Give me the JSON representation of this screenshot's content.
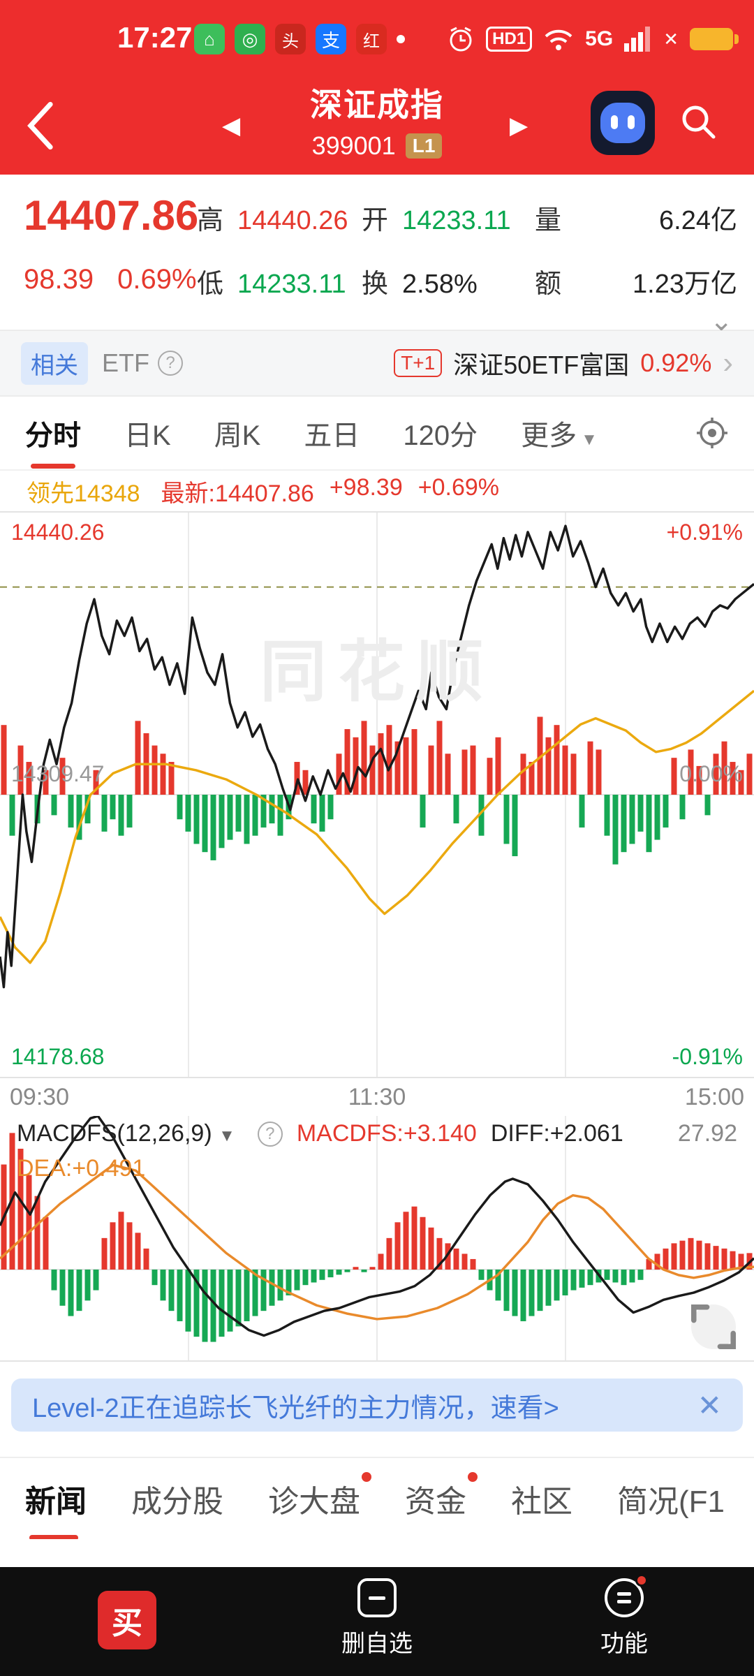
{
  "status_bar": {
    "time": "17:27",
    "hd": "HD1",
    "net": "5G"
  },
  "icons": {
    "prev": "◀",
    "next": "▶",
    "dropdown": "▼",
    "chevron_right": "›",
    "chevron_down": "⌄",
    "close": "✕",
    "help": "?",
    "no_sim": "✕",
    "home_badge": "⌂",
    "target_badge": "◎",
    "toutiao_badge": "头",
    "alipay_badge": "支",
    "news_badge": "红"
  },
  "header": {
    "title": "深证成指",
    "code": "399001",
    "level_badge": "L1"
  },
  "quote": {
    "price": "14407.86",
    "change": "98.39",
    "change_pct": "0.69%",
    "high_label": "高",
    "high": "14440.26",
    "open_label": "开",
    "open": "14233.11",
    "volume_label": "量",
    "volume": "6.24亿",
    "low_label": "低",
    "low": "14233.11",
    "turnover_label": "换",
    "turnover": "2.58%",
    "amount_label": "额",
    "amount": "1.23万亿"
  },
  "related": {
    "tag": "相关",
    "etf_label": "ETF",
    "t1_badge": "T+1",
    "name": "深证50ETF富国",
    "change_pct": "0.92%"
  },
  "period_tabs": {
    "items": [
      {
        "label": "分时"
      },
      {
        "label": "日K"
      },
      {
        "label": "周K"
      },
      {
        "label": "五日"
      },
      {
        "label": "120分"
      },
      {
        "label": "更多"
      }
    ]
  },
  "chart_header": {
    "lead_label": "领先",
    "lead_value": "14348",
    "latest_label": "最新:",
    "latest_value": "14407.86",
    "latest_change": "+98.39",
    "latest_pct": "+0.69%"
  },
  "timeshare_labels": {
    "top_left": "14440.26",
    "top_right": "+0.91%",
    "mid_left": "14309.47",
    "mid_right": "0.00%",
    "bottom_left": "14178.68",
    "bottom_right": "-0.91%",
    "watermark": "同花顺"
  },
  "macd_panel": {
    "indicator": "MACDFS(12,26,9)",
    "macd_value": "MACDFS:+3.140",
    "diff_value": "DIFF:+2.061",
    "dea_value": "DEA:+0.491",
    "scale_max": "27.92"
  },
  "banner": {
    "text": "Level-2正在追踪长飞光纤的主力情况，速看>"
  },
  "section_tabs": {
    "items": [
      {
        "label": "新闻"
      },
      {
        "label": "成分股"
      },
      {
        "label": "诊大盘"
      },
      {
        "label": "资金"
      },
      {
        "label": "社区"
      },
      {
        "label": "简况(F1"
      }
    ]
  },
  "bottom_nav": {
    "buy_label": "买",
    "delete_label": "删自选",
    "function_label": "功能"
  },
  "colors": {
    "theme_red": "#ED2D2D",
    "text_red": "#E5382D",
    "text_green": "#0AA74F",
    "gold_line": "#EBA90F",
    "macd_dea": "#E98A2B",
    "banner_blue": "#4479D9",
    "banner_bg": "#D8E6FB"
  },
  "chart_data": [
    {
      "type": "line",
      "name": "timeshare",
      "x_ticks": [
        "09:30",
        "11:30",
        "15:00"
      ],
      "y_left": [
        "14440.26",
        "14309.47",
        "14178.68"
      ],
      "y_right": [
        "+0.91%",
        "0.00%",
        "-0.91%"
      ],
      "prev_close": 14309.47,
      "ylim_pct": [
        -0.91,
        0.91
      ],
      "ref_dash_pct": 0.68,
      "price_pct": [
        [
          0,
          -0.53
        ],
        [
          0.005,
          -0.63
        ],
        [
          0.01,
          -0.45
        ],
        [
          0.015,
          -0.56
        ],
        [
          0.022,
          -0.3
        ],
        [
          0.03,
          0
        ],
        [
          0.035,
          -0.12
        ],
        [
          0.042,
          -0.22
        ],
        [
          0.05,
          -0.05
        ],
        [
          0.058,
          0.1
        ],
        [
          0.066,
          0.18
        ],
        [
          0.075,
          0.1
        ],
        [
          0.085,
          0.22
        ],
        [
          0.095,
          0.3
        ],
        [
          0.105,
          0.44
        ],
        [
          0.115,
          0.56
        ],
        [
          0.125,
          0.64
        ],
        [
          0.135,
          0.52
        ],
        [
          0.145,
          0.46
        ],
        [
          0.155,
          0.57
        ],
        [
          0.165,
          0.52
        ],
        [
          0.175,
          0.58
        ],
        [
          0.185,
          0.47
        ],
        [
          0.195,
          0.51
        ],
        [
          0.205,
          0.41
        ],
        [
          0.215,
          0.45
        ],
        [
          0.225,
          0.36
        ],
        [
          0.235,
          0.43
        ],
        [
          0.245,
          0.33
        ],
        [
          0.255,
          0.58
        ],
        [
          0.265,
          0.48
        ],
        [
          0.275,
          0.4
        ],
        [
          0.285,
          0.36
        ],
        [
          0.295,
          0.46
        ],
        [
          0.305,
          0.3
        ],
        [
          0.315,
          0.22
        ],
        [
          0.325,
          0.27
        ],
        [
          0.335,
          0.19
        ],
        [
          0.345,
          0.23
        ],
        [
          0.355,
          0.15
        ],
        [
          0.365,
          0.1
        ],
        [
          0.375,
          0.02
        ],
        [
          0.385,
          -0.05
        ],
        [
          0.395,
          0.05
        ],
        [
          0.405,
          -0.02
        ],
        [
          0.415,
          0.06
        ],
        [
          0.425,
          0
        ],
        [
          0.435,
          0.08
        ],
        [
          0.445,
          0.02
        ],
        [
          0.455,
          0.07
        ],
        [
          0.465,
          0.01
        ],
        [
          0.475,
          0.09
        ],
        [
          0.485,
          0.06
        ],
        [
          0.495,
          0.12
        ],
        [
          0.505,
          0.15
        ],
        [
          0.515,
          0.08
        ],
        [
          0.525,
          0.13
        ],
        [
          0.535,
          0.2
        ],
        [
          0.545,
          0.27
        ],
        [
          0.555,
          0.34
        ],
        [
          0.565,
          0.28
        ],
        [
          0.572,
          0.4
        ],
        [
          0.582,
          0.32
        ],
        [
          0.592,
          0.28
        ],
        [
          0.602,
          0.42
        ],
        [
          0.612,
          0.52
        ],
        [
          0.622,
          0.62
        ],
        [
          0.632,
          0.7
        ],
        [
          0.642,
          0.76
        ],
        [
          0.652,
          0.82
        ],
        [
          0.66,
          0.74
        ],
        [
          0.668,
          0.84
        ],
        [
          0.676,
          0.77
        ],
        [
          0.684,
          0.85
        ],
        [
          0.692,
          0.78
        ],
        [
          0.7,
          0.86
        ],
        [
          0.71,
          0.8
        ],
        [
          0.72,
          0.74
        ],
        [
          0.73,
          0.86
        ],
        [
          0.74,
          0.8
        ],
        [
          0.75,
          0.88
        ],
        [
          0.76,
          0.78
        ],
        [
          0.77,
          0.83
        ],
        [
          0.78,
          0.76
        ],
        [
          0.79,
          0.68
        ],
        [
          0.8,
          0.74
        ],
        [
          0.81,
          0.66
        ],
        [
          0.82,
          0.62
        ],
        [
          0.83,
          0.66
        ],
        [
          0.84,
          0.6
        ],
        [
          0.85,
          0.64
        ],
        [
          0.857,
          0.55
        ],
        [
          0.865,
          0.5
        ],
        [
          0.875,
          0.56
        ],
        [
          0.885,
          0.5
        ],
        [
          0.895,
          0.55
        ],
        [
          0.905,
          0.51
        ],
        [
          0.915,
          0.56
        ],
        [
          0.925,
          0.58
        ],
        [
          0.935,
          0.55
        ],
        [
          0.945,
          0.6
        ],
        [
          0.955,
          0.62
        ],
        [
          0.965,
          0.61
        ],
        [
          0.975,
          0.64
        ],
        [
          0.985,
          0.66
        ],
        [
          1,
          0.69
        ]
      ],
      "avg_pct": [
        [
          0,
          -0.4
        ],
        [
          0.02,
          -0.5
        ],
        [
          0.04,
          -0.55
        ],
        [
          0.06,
          -0.48
        ],
        [
          0.08,
          -0.32
        ],
        [
          0.1,
          -0.14
        ],
        [
          0.12,
          0
        ],
        [
          0.15,
          0.07
        ],
        [
          0.18,
          0.1
        ],
        [
          0.22,
          0.1
        ],
        [
          0.26,
          0.08
        ],
        [
          0.3,
          0.05
        ],
        [
          0.34,
          0
        ],
        [
          0.38,
          -0.06
        ],
        [
          0.42,
          -0.13
        ],
        [
          0.46,
          -0.24
        ],
        [
          0.49,
          -0.34
        ],
        [
          0.51,
          -0.39
        ],
        [
          0.54,
          -0.33
        ],
        [
          0.57,
          -0.25
        ],
        [
          0.6,
          -0.16
        ],
        [
          0.63,
          -0.08
        ],
        [
          0.66,
          0
        ],
        [
          0.69,
          0.07
        ],
        [
          0.72,
          0.13
        ],
        [
          0.75,
          0.19
        ],
        [
          0.77,
          0.23
        ],
        [
          0.79,
          0.25
        ],
        [
          0.81,
          0.23
        ],
        [
          0.83,
          0.21
        ],
        [
          0.85,
          0.17
        ],
        [
          0.87,
          0.14
        ],
        [
          0.89,
          0.15
        ],
        [
          0.91,
          0.17
        ],
        [
          0.93,
          0.2
        ],
        [
          0.95,
          0.24
        ],
        [
          0.97,
          0.28
        ],
        [
          0.99,
          0.32
        ],
        [
          1,
          0.34
        ]
      ],
      "volume": [
        0.85,
        -0.5,
        0.6,
        0.4,
        -0.35,
        0.3,
        -0.25,
        0.45,
        -0.4,
        -0.55,
        -0.35,
        0.3,
        -0.45,
        -0.3,
        -0.5,
        -0.4,
        0.9,
        0.75,
        0.6,
        0.5,
        0.4,
        -0.3,
        -0.45,
        -0.6,
        -0.7,
        -0.8,
        -0.65,
        -0.55,
        -0.45,
        -0.6,
        -0.5,
        -0.4,
        -0.35,
        -0.5,
        -0.3,
        0.4,
        0.3,
        -0.35,
        -0.45,
        -0.3,
        0.5,
        0.8,
        0.7,
        0.9,
        0.6,
        0.75,
        0.85,
        0.65,
        0.7,
        0.8,
        -0.4,
        0.6,
        0.9,
        0.5,
        -0.35,
        0.55,
        0.6,
        -0.5,
        0.45,
        0.7,
        -0.6,
        -0.75,
        0.5,
        0.4,
        0.95,
        0.7,
        0.85,
        0.6,
        0.5,
        -0.4,
        0.65,
        0.55,
        -0.5,
        -0.85,
        -0.7,
        -0.6,
        -0.45,
        -0.7,
        -0.55,
        -0.4,
        0.45,
        -0.3,
        0.55,
        0.35,
        -0.25,
        0.5,
        0.65,
        0.4,
        0.3,
        0.5
      ]
    },
    {
      "type": "bar",
      "name": "macd",
      "params": "MACDFS(12,26,9)",
      "latest": {
        "macd": 3.14,
        "diff": 2.061,
        "dea": 0.491
      },
      "ylim": [
        -16.5,
        27.92
      ],
      "hist": [
        20,
        26,
        23,
        18,
        14,
        10,
        -4,
        -7,
        -9,
        -8,
        -6,
        -4,
        6,
        9,
        11,
        9,
        7,
        4,
        -3,
        -6,
        -8,
        -10,
        -12,
        -13,
        -14,
        -14,
        -13,
        -12,
        -11,
        -10,
        -9,
        -8,
        -7,
        -6,
        -5,
        -4,
        -3,
        -2.5,
        -2,
        -1.5,
        -1,
        -0.5,
        0.5,
        -0.5,
        0.5,
        3,
        6,
        9,
        11,
        12,
        10,
        8,
        6,
        5,
        4,
        3,
        2,
        -2,
        -4,
        -6,
        -8,
        -9,
        -10,
        -9,
        -8,
        -7,
        -6,
        -5,
        -4,
        -3.5,
        -3,
        -2.5,
        -2,
        -2.5,
        -3,
        -2.5,
        -2,
        2,
        3,
        4,
        5,
        5.5,
        6,
        5.5,
        5,
        4.5,
        4,
        3.5,
        3,
        3.14
      ],
      "dif": [
        [
          0,
          8
        ],
        [
          0.02,
          14
        ],
        [
          0.04,
          10
        ],
        [
          0.06,
          16
        ],
        [
          0.08,
          20
        ],
        [
          0.1,
          24
        ],
        [
          0.12,
          27.5
        ],
        [
          0.13,
          27.9
        ],
        [
          0.15,
          24
        ],
        [
          0.17,
          19
        ],
        [
          0.19,
          14
        ],
        [
          0.21,
          9
        ],
        [
          0.23,
          4
        ],
        [
          0.25,
          0
        ],
        [
          0.27,
          -4
        ],
        [
          0.29,
          -7
        ],
        [
          0.31,
          -9
        ],
        [
          0.33,
          -11
        ],
        [
          0.35,
          -12
        ],
        [
          0.37,
          -11
        ],
        [
          0.39,
          -9.5
        ],
        [
          0.41,
          -8.5
        ],
        [
          0.43,
          -7.5
        ],
        [
          0.45,
          -7
        ],
        [
          0.47,
          -6
        ],
        [
          0.49,
          -5
        ],
        [
          0.51,
          -4.5
        ],
        [
          0.53,
          -4
        ],
        [
          0.55,
          -3
        ],
        [
          0.57,
          -1
        ],
        [
          0.59,
          2
        ],
        [
          0.61,
          6
        ],
        [
          0.63,
          10
        ],
        [
          0.65,
          13.5
        ],
        [
          0.67,
          16
        ],
        [
          0.68,
          16.5
        ],
        [
          0.7,
          15.5
        ],
        [
          0.72,
          12.5
        ],
        [
          0.74,
          9
        ],
        [
          0.76,
          5
        ],
        [
          0.78,
          1.5
        ],
        [
          0.8,
          -2
        ],
        [
          0.82,
          -5.5
        ],
        [
          0.84,
          -7.8
        ],
        [
          0.86,
          -6.8
        ],
        [
          0.88,
          -5.5
        ],
        [
          0.9,
          -4.8
        ],
        [
          0.92,
          -4.2
        ],
        [
          0.94,
          -3.2
        ],
        [
          0.96,
          -2
        ],
        [
          0.98,
          -0.5
        ],
        [
          1,
          2.06
        ]
      ],
      "dea": [
        [
          0,
          2
        ],
        [
          0.04,
          7
        ],
        [
          0.08,
          12
        ],
        [
          0.12,
          16
        ],
        [
          0.15,
          19
        ],
        [
          0.18,
          18
        ],
        [
          0.22,
          13
        ],
        [
          0.26,
          8
        ],
        [
          0.3,
          3
        ],
        [
          0.34,
          -1
        ],
        [
          0.38,
          -4
        ],
        [
          0.42,
          -6.5
        ],
        [
          0.46,
          -8
        ],
        [
          0.5,
          -9
        ],
        [
          0.54,
          -8.5
        ],
        [
          0.58,
          -7
        ],
        [
          0.62,
          -4.5
        ],
        [
          0.66,
          -1
        ],
        [
          0.7,
          5
        ],
        [
          0.72,
          9
        ],
        [
          0.74,
          12
        ],
        [
          0.76,
          13.5
        ],
        [
          0.78,
          13
        ],
        [
          0.8,
          11
        ],
        [
          0.82,
          8
        ],
        [
          0.84,
          5
        ],
        [
          0.86,
          2
        ],
        [
          0.88,
          0
        ],
        [
          0.9,
          -1
        ],
        [
          0.92,
          -1.5
        ],
        [
          0.94,
          -1
        ],
        [
          0.96,
          -0.2
        ],
        [
          0.98,
          0.3
        ],
        [
          1,
          0.49
        ]
      ]
    }
  ]
}
